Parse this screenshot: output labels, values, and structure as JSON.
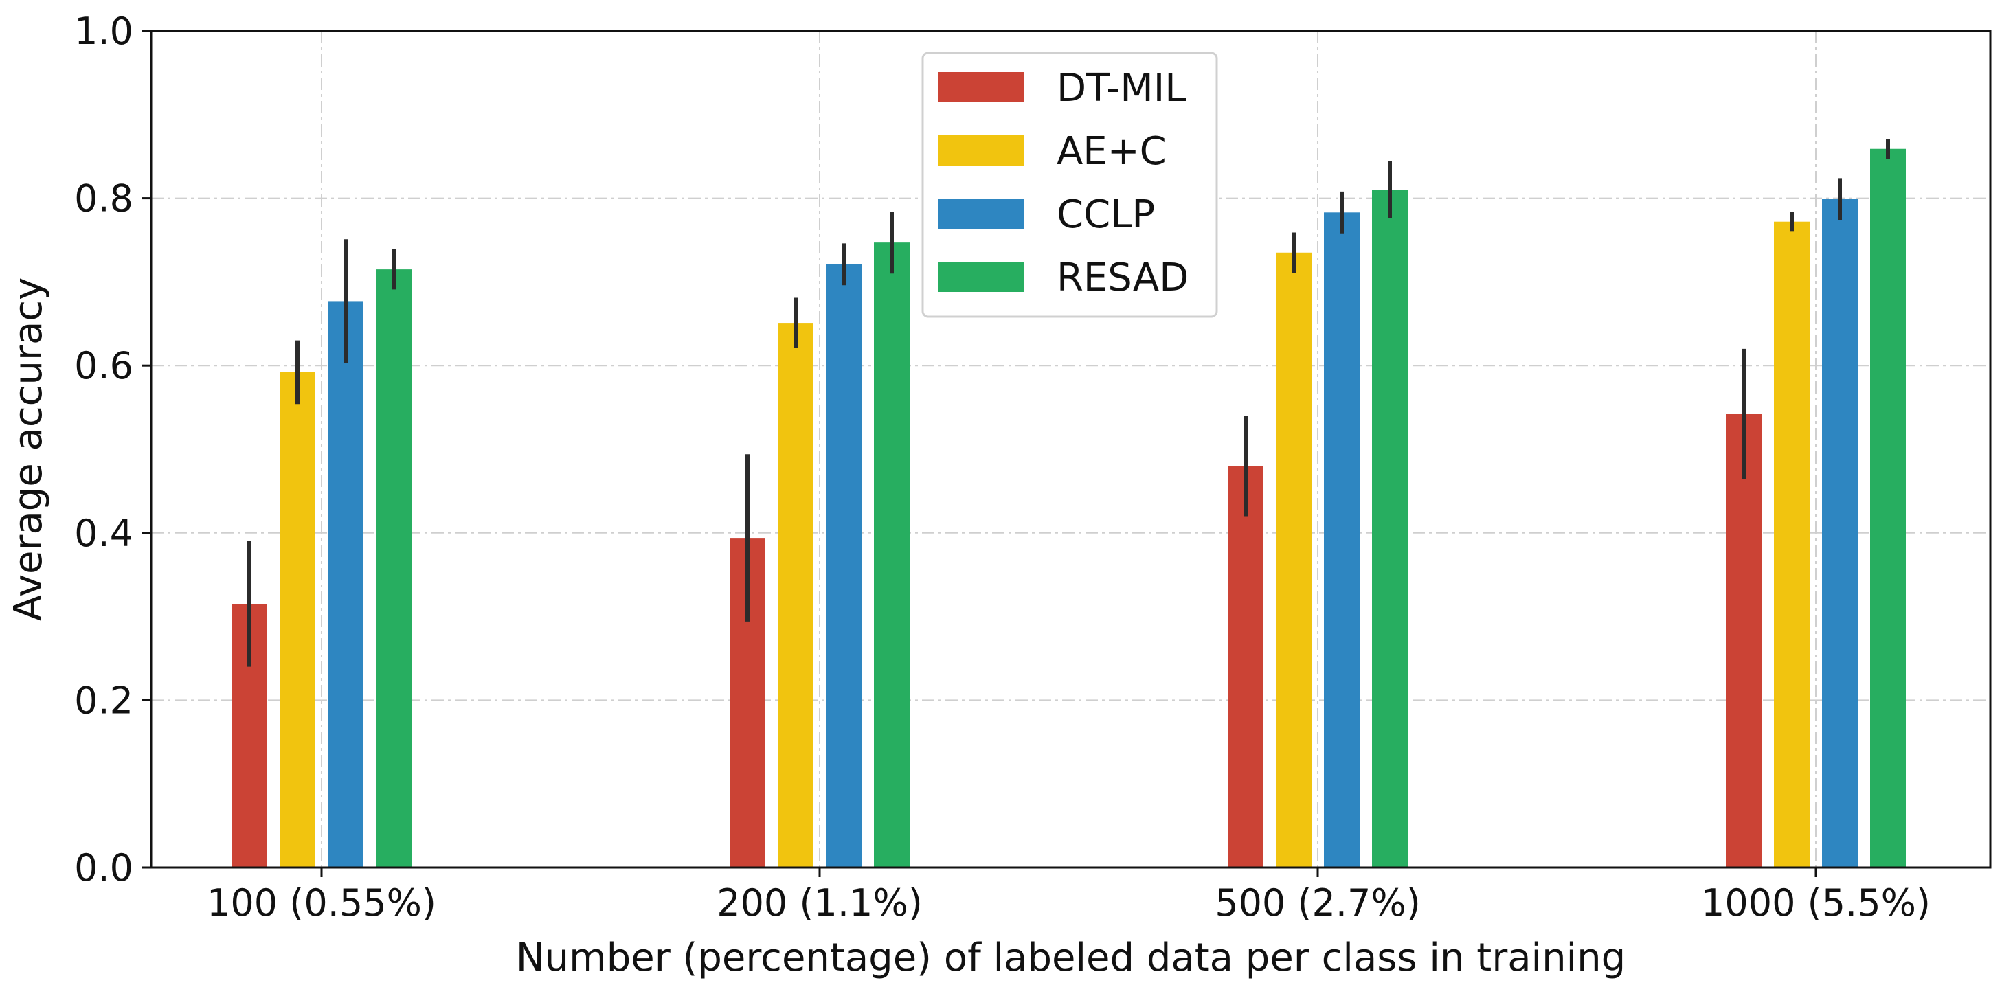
{
  "chart_data": {
    "type": "bar",
    "title": "",
    "xlabel": "Number (percentage) of labeled data per class in training",
    "ylabel": "Average accuracy",
    "ylim": [
      0,
      1.0
    ],
    "yticks": [
      "0.0",
      "0.2",
      "0.4",
      "0.6",
      "0.8",
      "1.0"
    ],
    "grid": true,
    "legend_position": "top-center",
    "categories": [
      "100 (0.55%)",
      "200 (1.1%)",
      "500 (2.7%)",
      "1000 (5.5%)"
    ],
    "series": [
      {
        "name": "DT-MIL",
        "color": "#cb4335",
        "values": [
          0.315,
          0.394,
          0.48,
          0.542
        ],
        "error": [
          0.075,
          0.1,
          0.06,
          0.078
        ]
      },
      {
        "name": "AE+C",
        "color": "#f1c40f",
        "values": [
          0.592,
          0.651,
          0.735,
          0.772
        ],
        "error": [
          0.038,
          0.03,
          0.024,
          0.012
        ]
      },
      {
        "name": "CCLP",
        "color": "#2e86c1",
        "values": [
          0.677,
          0.721,
          0.783,
          0.799
        ],
        "error": [
          0.074,
          0.025,
          0.025,
          0.025
        ]
      },
      {
        "name": "RESAD",
        "color": "#27ae60",
        "values": [
          0.715,
          0.747,
          0.81,
          0.859
        ],
        "error": [
          0.024,
          0.037,
          0.034,
          0.012
        ]
      }
    ]
  }
}
